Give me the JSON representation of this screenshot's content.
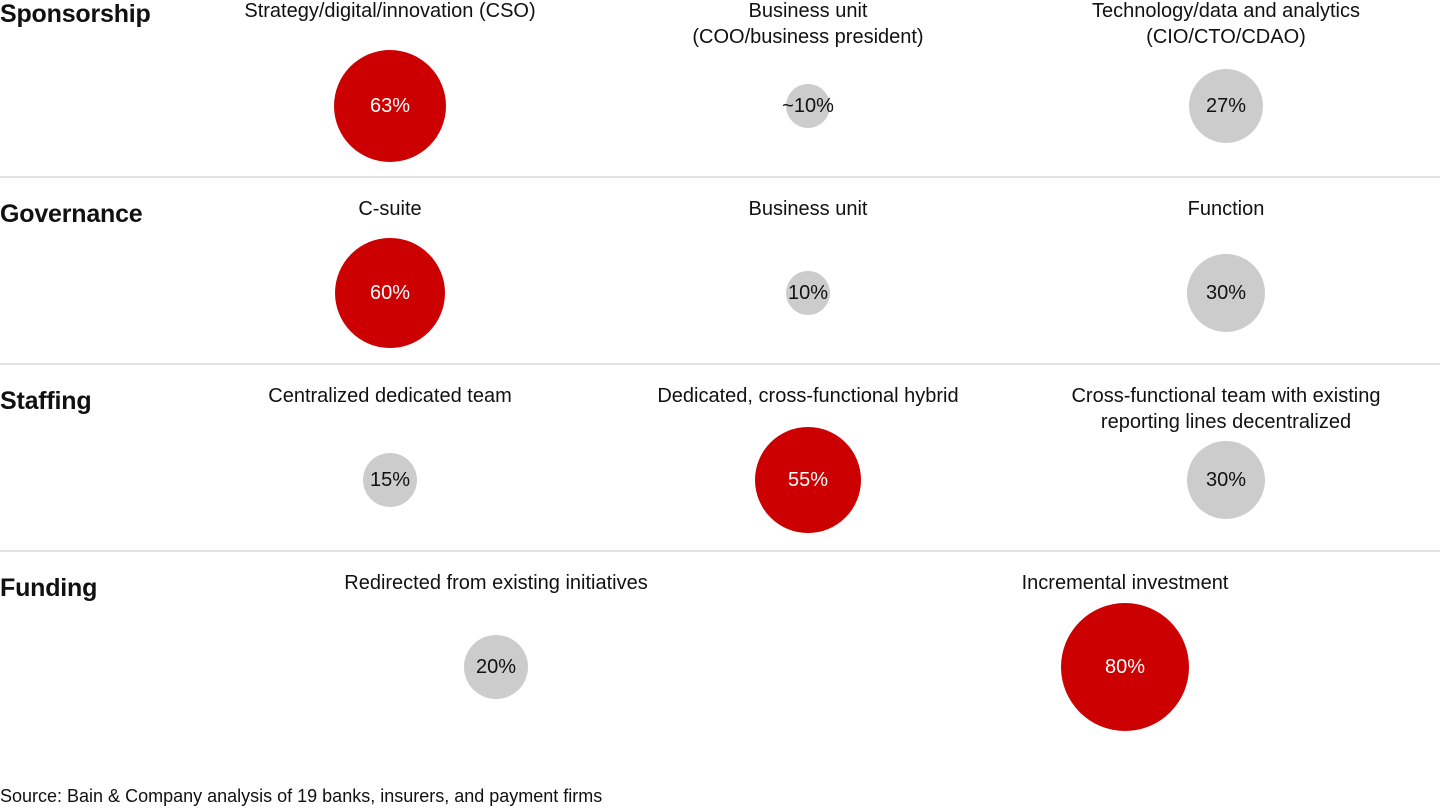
{
  "chart_data": {
    "type": "bubble-matrix",
    "title": "",
    "highlight_color": "#cc0000",
    "neutral_color": "#cccccc",
    "rows": [
      {
        "label": "Sponsorship",
        "cells": [
          {
            "label": "Strategy/digital/innovation (CSO)",
            "value": 63,
            "display": "63%",
            "highlight": true
          },
          {
            "label": "Business unit\n(COO/business president)",
            "value": 10,
            "display": "~10%",
            "highlight": false
          },
          {
            "label": "Technology/data and analytics\n(CIO/CTO/CDAO)",
            "value": 27,
            "display": "27%",
            "highlight": false
          }
        ]
      },
      {
        "label": "Governance",
        "cells": [
          {
            "label": "C-suite",
            "value": 60,
            "display": "60%",
            "highlight": true
          },
          {
            "label": "Business unit",
            "value": 10,
            "display": "10%",
            "highlight": false
          },
          {
            "label": "Function",
            "value": 30,
            "display": "30%",
            "highlight": false
          }
        ]
      },
      {
        "label": "Staffing",
        "cells": [
          {
            "label": "Centralized dedicated team",
            "value": 15,
            "display": "15%",
            "highlight": false
          },
          {
            "label": "Dedicated, cross-functional hybrid",
            "value": 55,
            "display": "55%",
            "highlight": true
          },
          {
            "label": "Cross-functional team with existing\nreporting lines decentralized",
            "value": 30,
            "display": "30%",
            "highlight": false
          }
        ]
      },
      {
        "label": "Funding",
        "cells": [
          {
            "label": "Redirected from existing initiatives",
            "value": 20,
            "display": "20%",
            "highlight": false
          },
          {
            "label": "Incremental investment",
            "value": 80,
            "display": "80%",
            "highlight": true
          }
        ]
      }
    ],
    "source": "Source: Bain & Company analysis of 19 banks, insurers, and payment firms"
  }
}
